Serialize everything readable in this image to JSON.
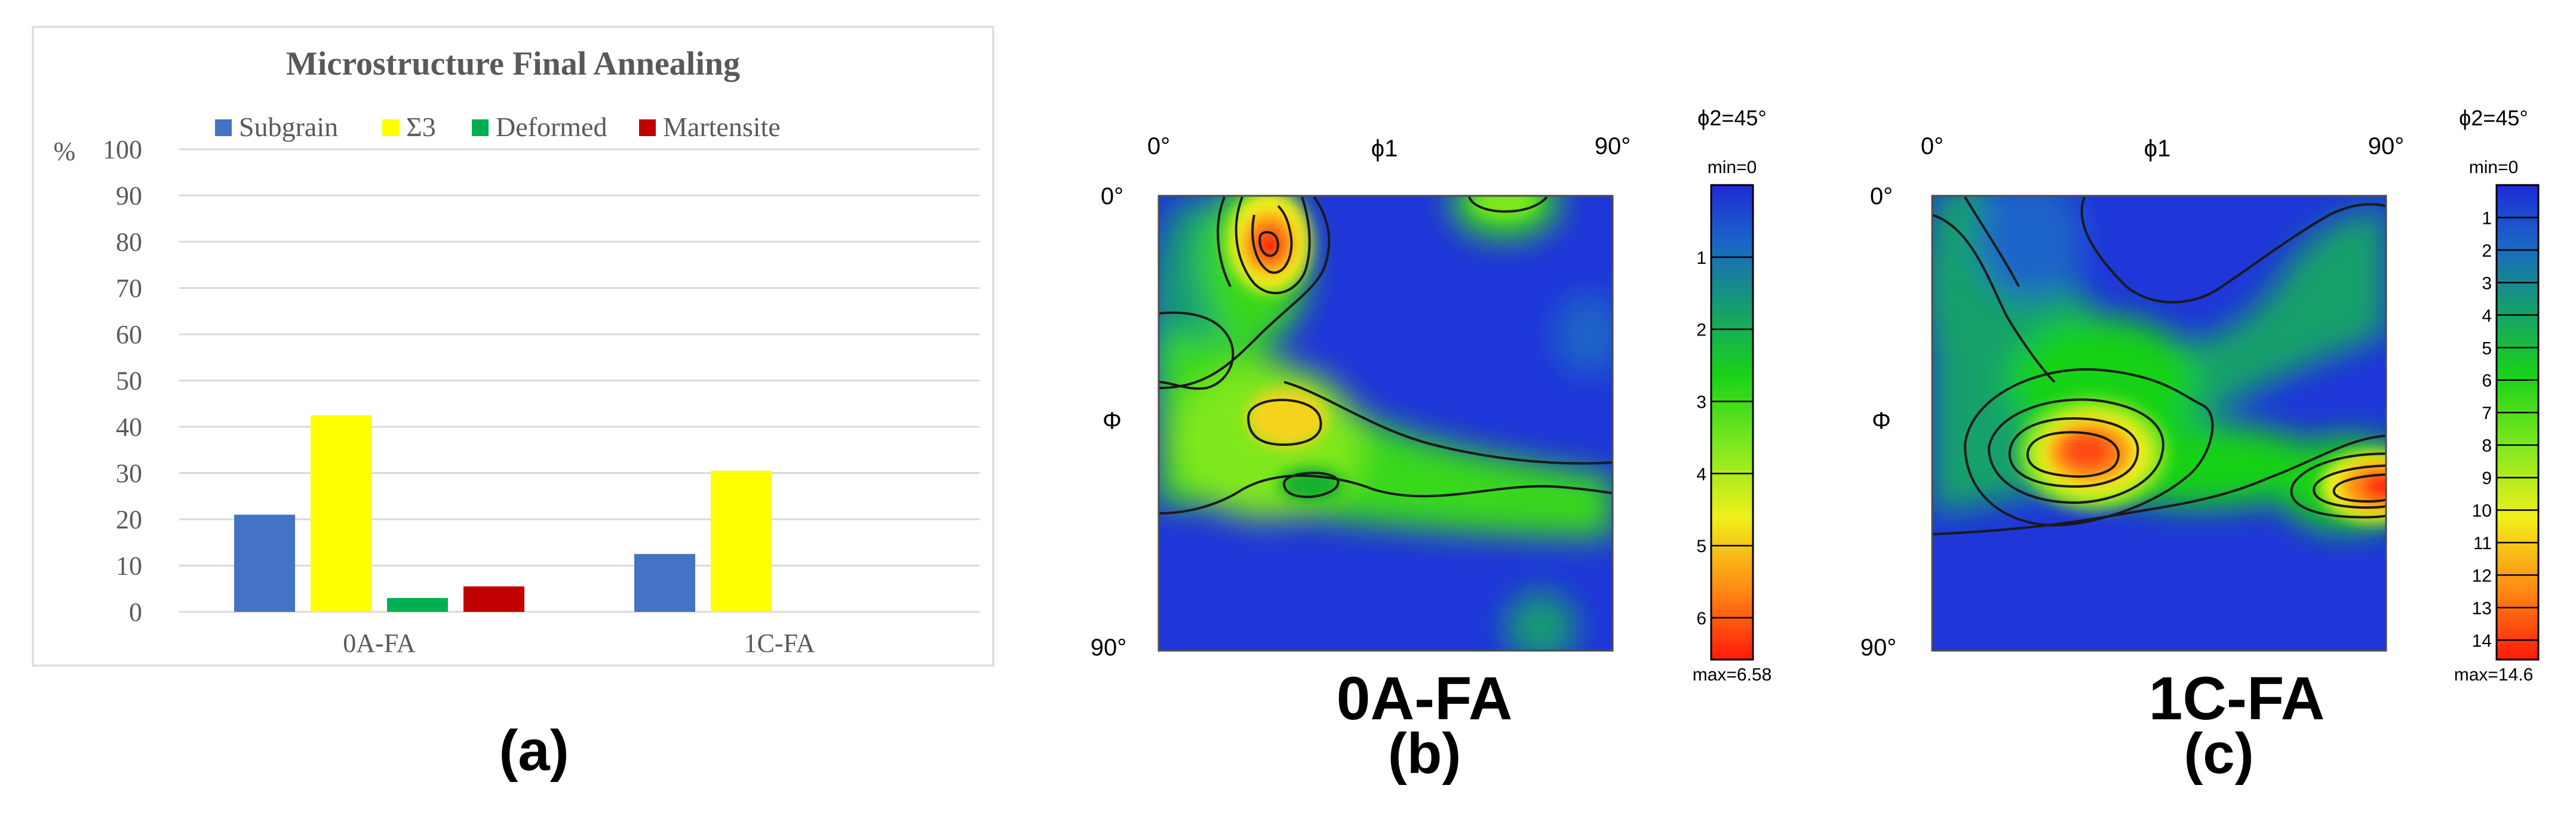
{
  "panel_a": {
    "caption": "(a)",
    "y_unit": "%",
    "colors": {
      "Subgrain": "#4472c4",
      "Σ3": "#ffff00",
      "Deformed": "#00b050",
      "Martensite": "#c00000"
    }
  },
  "panel_b": {
    "sample": "0A-FA",
    "caption": "(b)"
  },
  "panel_c": {
    "sample": "1C-FA",
    "caption": "(c)"
  },
  "odf_labels": {
    "phi1_start": "0°",
    "phi1": "ϕ1",
    "phi1_end": "90°",
    "Phi_start": "0°",
    "Phi": "Φ",
    "Phi_end": "90°"
  },
  "chart_data": [
    {
      "type": "bar",
      "title": "Microstructure Final Annealing",
      "categories": [
        "0A-FA",
        "1C-FA"
      ],
      "series": [
        {
          "name": "Subgrain",
          "values": [
            21,
            12.5
          ]
        },
        {
          "name": "Σ3",
          "values": [
            42.5,
            30.5
          ]
        },
        {
          "name": "Deformed",
          "values": [
            3,
            null
          ]
        },
        {
          "name": "Martensite",
          "values": [
            5.5,
            null
          ]
        }
      ],
      "ylim": [
        0,
        100
      ],
      "yticks": [
        0,
        10,
        20,
        30,
        40,
        50,
        60,
        70,
        80,
        90,
        100
      ],
      "ylabel": "%",
      "legend": "top",
      "grid": true
    },
    {
      "type": "heatmap",
      "label": "0A-FA",
      "section": "ϕ2=45°",
      "colorbar": {
        "min_label": "min=0",
        "max_label": "max=6.58",
        "ticks": [
          "1",
          "2",
          "3",
          "4",
          "5",
          "6"
        ],
        "min": 0,
        "max": 6.58
      }
    },
    {
      "type": "heatmap",
      "label": "1C-FA",
      "section": "ϕ2=45°",
      "colorbar": {
        "min_label": "min=0",
        "max_label": "max=14.6",
        "ticks": [
          "1",
          "2",
          "3",
          "4",
          "5",
          "6",
          "7",
          "8",
          "9",
          "10",
          "11",
          "12",
          "13",
          "14"
        ],
        "min": 0,
        "max": 14.6
      }
    }
  ]
}
